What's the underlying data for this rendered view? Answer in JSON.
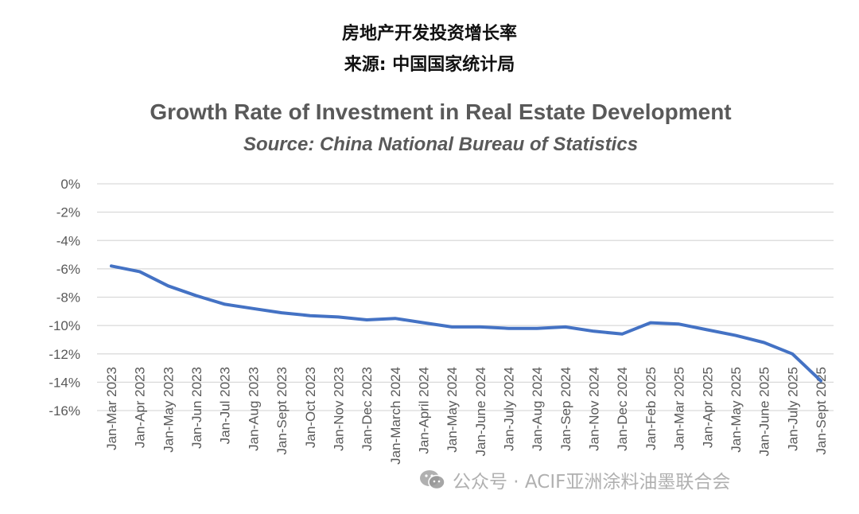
{
  "header": {
    "cn_title": "房地产开发投资增长率",
    "cn_source": "来源: 中国国家统计局"
  },
  "watermark": {
    "text": "公众号 · ACIF亚洲涂料油墨联合会",
    "icon": "wechat-icon"
  },
  "colors": {
    "line": "#4472C4",
    "grid": "#D9D9D9",
    "text": "#595959"
  },
  "chart_data": {
    "type": "line",
    "title": "Growth Rate of Investment in Real Estate Development",
    "subtitle": "Source: China National Bureau of Statistics",
    "xlabel": "",
    "ylabel": "",
    "ylim": [
      -16,
      0
    ],
    "yticks": [
      0,
      -2,
      -4,
      -6,
      -8,
      -10,
      -12,
      -14,
      -16
    ],
    "ytick_labels": [
      "0%",
      "-2%",
      "-4%",
      "-6%",
      "-8%",
      "-10%",
      "-12%",
      "-14%",
      "-16%"
    ],
    "grid": true,
    "legend": "none",
    "categories": [
      "Jan-Mar 2023",
      "Jan-Apr 2023",
      "Jan-May 2023",
      "Jan-Jun 2023",
      "Jan-Jul 2023",
      "Jan-Aug 2023",
      "Jan-Sept 2023",
      "Jan-Oct 2023",
      "Jan-Nov 2023",
      "Jan-Dec 2023",
      "Jan-March 2024",
      "Jan-April 2024",
      "Jan-May 2024",
      "Jan-June 2024",
      "Jan-July 2024",
      "Jan-Aug 2024",
      "Jan-Sep 2024",
      "Jan-Nov 2024",
      "Jan-Dec 2024",
      "Jan-Feb 2025",
      "Jan-Mar 2025",
      "Jan-Apr 2025",
      "Jan-May 2025",
      "Jan-June 2025",
      "Jan-July 2025",
      "Jan-Sept 2025"
    ],
    "series": [
      {
        "values": [
          -5.8,
          -6.2,
          -7.2,
          -7.9,
          -8.5,
          -8.8,
          -9.1,
          -9.3,
          -9.4,
          -9.6,
          -9.5,
          -9.8,
          -10.1,
          -10.1,
          -10.2,
          -10.2,
          -10.1,
          -10.4,
          -10.6,
          -9.8,
          -9.9,
          -10.3,
          -10.7,
          -11.2,
          -12.0,
          -13.9
        ]
      }
    ]
  }
}
